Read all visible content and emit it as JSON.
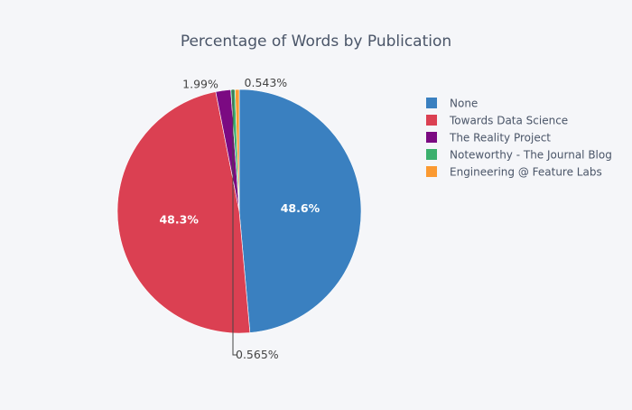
{
  "chart_data": {
    "type": "pie",
    "title": "Percentage of Words by Publication",
    "labels": [
      "None",
      "Towards Data Science",
      "The Reality Project",
      "Noteworthy - The Journal Blog",
      "Engineering @ Feature Labs"
    ],
    "values": [
      48.6,
      48.3,
      1.99,
      0.565,
      0.543
    ],
    "value_labels": [
      "48.6%",
      "48.3%",
      "1.99%",
      "0.565%",
      "0.543%"
    ],
    "colors": [
      "#3a80c0",
      "#db4052",
      "#7b0a82",
      "#3cb06e",
      "#fb9a32"
    ],
    "direction": "clockwise",
    "start_angle_deg": 90,
    "legend": "right",
    "background": "#f5f6f9"
  }
}
